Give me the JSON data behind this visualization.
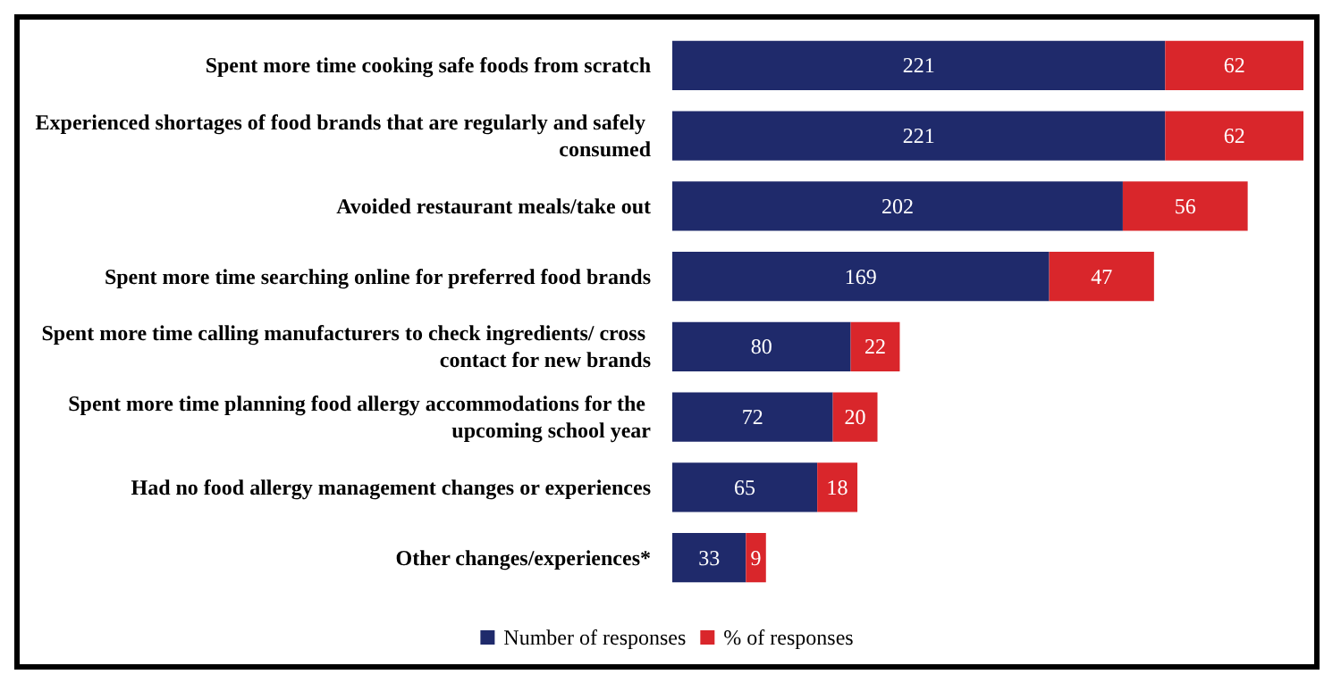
{
  "chart_data": {
    "type": "bar",
    "orientation": "horizontal",
    "stacked": true,
    "data_labels": true,
    "legend": "bottom",
    "grid": false,
    "tick_labels": "y",
    "categories": [
      "Spent more time cooking safe foods from scratch",
      "Experienced shortages of food brands that are regularly and safely consumed",
      "Avoided restaurant meals/take out",
      "Spent more time searching online for preferred food brands",
      "Spent more time calling manufacturers to check ingredients/ cross contact for new brands",
      "Spent more time planning food allergy accommodations for the upcoming school year",
      "Had no food allergy management changes or experiences",
      "Other changes/experiences*"
    ],
    "series": [
      {
        "name": "Number of responses",
        "color": "#1f2a6b",
        "values": [
          221,
          221,
          202,
          169,
          80,
          72,
          65,
          33
        ]
      },
      {
        "name": "% of responses",
        "color": "#d9262b",
        "values": [
          62,
          62,
          56,
          47,
          22,
          20,
          18,
          9
        ]
      }
    ]
  }
}
